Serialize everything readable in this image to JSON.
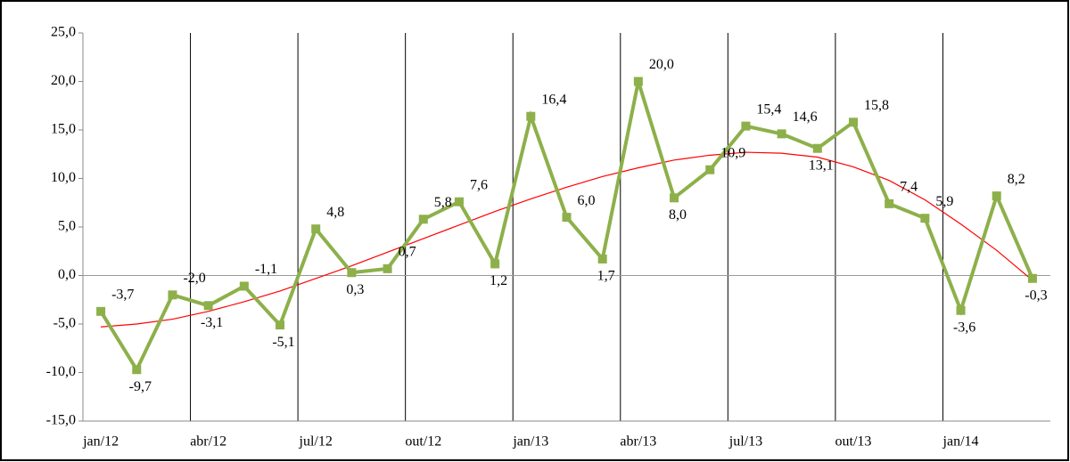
{
  "chart_data": {
    "type": "line",
    "categories": [
      "jan/12",
      null,
      null,
      "abr/12",
      null,
      null,
      "jul/12",
      null,
      null,
      "out/12",
      null,
      null,
      "jan/13",
      null,
      null,
      "abr/13",
      null,
      null,
      "jul/13",
      null,
      null,
      "out/13",
      null,
      null,
      "jan/14",
      null,
      null
    ],
    "series": [
      {
        "color": "#8db04a",
        "values": [
          -3.7,
          -9.7,
          -2.0,
          -3.1,
          -1.1,
          -5.1,
          4.8,
          0.3,
          0.7,
          5.8,
          7.6,
          1.2,
          16.4,
          6.0,
          1.7,
          20.0,
          8.0,
          10.9,
          15.4,
          14.6,
          13.1,
          15.8,
          7.4,
          5.9,
          -3.6,
          8.2,
          -0.3
        ],
        "value_labels": [
          "-3,7",
          "-9,7",
          "-2,0",
          "-3,1",
          "-1,1",
          "-5,1",
          "4,8",
          "0,3",
          "0,7",
          "5,8",
          "7,6",
          "1,2",
          "16,4",
          "6,0",
          "1,7",
          "20,0",
          "8,0",
          "10,9",
          "15,4",
          "14,6",
          "13,1",
          "15,8",
          "7,4",
          "5,9",
          "-3,6",
          "8,2",
          "-0,3"
        ]
      },
      {
        "color": "#ff0000",
        "values": [
          -5.3,
          -5.0,
          -4.5,
          -3.7,
          -2.7,
          -1.6,
          -0.3,
          1.0,
          2.4,
          3.8,
          5.2,
          6.6,
          7.9,
          9.1,
          10.2,
          11.1,
          11.9,
          12.4,
          12.7,
          12.6,
          12.2,
          11.2,
          9.8,
          7.8,
          5.3,
          2.6,
          -0.5
        ]
      }
    ],
    "ylim": [
      -15,
      25
    ],
    "yticks": [
      {
        "value": -15,
        "label": "-15,0"
      },
      {
        "value": -10,
        "label": "-10,0"
      },
      {
        "value": -5,
        "label": "-5,0"
      },
      {
        "value": 0,
        "label": "0,0"
      },
      {
        "value": 5,
        "label": "5,0"
      },
      {
        "value": 10,
        "label": "10,0"
      },
      {
        "value": 15,
        "label": "15,0"
      },
      {
        "value": 20,
        "label": "20,0"
      },
      {
        "value": 25,
        "label": "25,0"
      }
    ]
  }
}
